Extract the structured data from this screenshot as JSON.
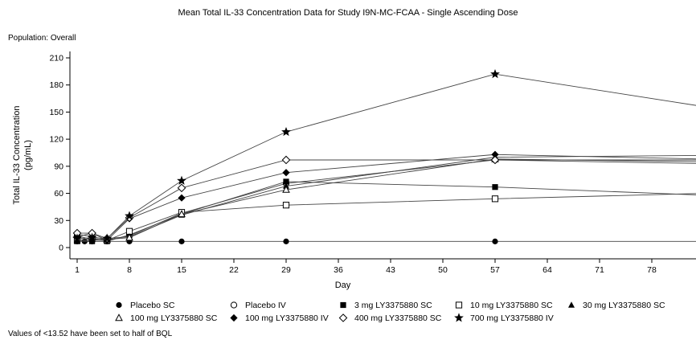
{
  "chart_data": {
    "type": "line",
    "title": "Mean Total IL-33 Concentration Data for Study I9N-MC-FCAA - Single Ascending Dose",
    "subtitle": "Population: Overall",
    "xlabel": "Day",
    "ylabel": "Total IL-33 Concentration",
    "ylabel_unit": "(pg/mL)",
    "xticks": [
      "1",
      "8",
      "15",
      "22",
      "29",
      "36",
      "43",
      "50",
      "57",
      "64",
      "71",
      "78"
    ],
    "yticks": [
      "0",
      "30",
      "60",
      "90",
      "120",
      "150",
      "180",
      "210"
    ],
    "xlim": [
      0,
      85
    ],
    "ylim": [
      -5,
      215
    ],
    "grid": false,
    "legend_position": "bottom",
    "footnote": "Values of <13.52 have been set to half of BQL",
    "series": [
      {
        "name": "Placebo SC",
        "marker": "filled-circle",
        "points": [
          [
            1,
            6.8
          ],
          [
            2,
            6.8
          ],
          [
            3,
            6.8
          ],
          [
            5,
            6.8
          ],
          [
            8,
            6.8
          ],
          [
            15,
            6.8
          ],
          [
            29,
            6.8
          ],
          [
            57,
            6.8
          ],
          [
            85,
            6.8
          ]
        ]
      },
      {
        "name": "Placebo IV",
        "marker": "open-circle",
        "points": [
          [
            1,
            13
          ],
          [
            3,
            9
          ],
          [
            5,
            8
          ],
          [
            8,
            13
          ],
          [
            15,
            38
          ],
          [
            29,
            71
          ],
          [
            57,
            97
          ],
          [
            85,
            93
          ]
        ]
      },
      {
        "name": "3 mg LY3375880 SC",
        "marker": "filled-square",
        "points": [
          [
            1,
            7
          ],
          [
            3,
            7
          ],
          [
            5,
            7
          ],
          [
            8,
            14
          ],
          [
            15,
            37
          ],
          [
            29,
            73
          ],
          [
            57,
            67
          ],
          [
            85,
            58
          ]
        ]
      },
      {
        "name": "10 mg LY3375880 SC",
        "marker": "open-square",
        "points": [
          [
            1,
            8
          ],
          [
            3,
            10
          ],
          [
            5,
            8
          ],
          [
            8,
            18
          ],
          [
            15,
            39
          ],
          [
            29,
            47
          ],
          [
            57,
            54
          ],
          [
            85,
            60
          ]
        ]
      },
      {
        "name": "30 mg LY3375880 SC",
        "marker": "filled-triangle",
        "points": [
          [
            1,
            7
          ],
          [
            3,
            8
          ],
          [
            5,
            10
          ],
          [
            8,
            12
          ],
          [
            15,
            36
          ],
          [
            29,
            68
          ],
          [
            57,
            100
          ],
          [
            85,
            102
          ]
        ]
      },
      {
        "name": "100 mg LY3375880 SC",
        "marker": "open-triangle",
        "points": [
          [
            1,
            15
          ],
          [
            3,
            12
          ],
          [
            5,
            9
          ],
          [
            8,
            11
          ],
          [
            15,
            37
          ],
          [
            29,
            64
          ],
          [
            57,
            98
          ],
          [
            85,
            95
          ]
        ]
      },
      {
        "name": "100 mg LY3375880 IV",
        "marker": "filled-diamond",
        "points": [
          [
            1,
            12
          ],
          [
            3,
            16
          ],
          [
            5,
            8
          ],
          [
            8,
            32
          ],
          [
            15,
            55
          ],
          [
            29,
            83
          ],
          [
            57,
            103
          ],
          [
            85,
            98
          ]
        ]
      },
      {
        "name": "400 mg LY3375880 SC",
        "marker": "open-diamond",
        "points": [
          [
            1,
            16
          ],
          [
            3,
            16
          ],
          [
            5,
            10
          ],
          [
            8,
            33
          ],
          [
            15,
            66
          ],
          [
            29,
            97
          ],
          [
            57,
            97
          ],
          [
            85,
            97
          ]
        ]
      },
      {
        "name": "700 mg LY3375880 IV",
        "marker": "star",
        "points": [
          [
            1,
            10
          ],
          [
            3,
            11
          ],
          [
            5,
            10
          ],
          [
            8,
            35
          ],
          [
            15,
            74
          ],
          [
            29,
            128
          ],
          [
            57,
            192
          ],
          [
            85,
            156
          ]
        ]
      }
    ]
  }
}
